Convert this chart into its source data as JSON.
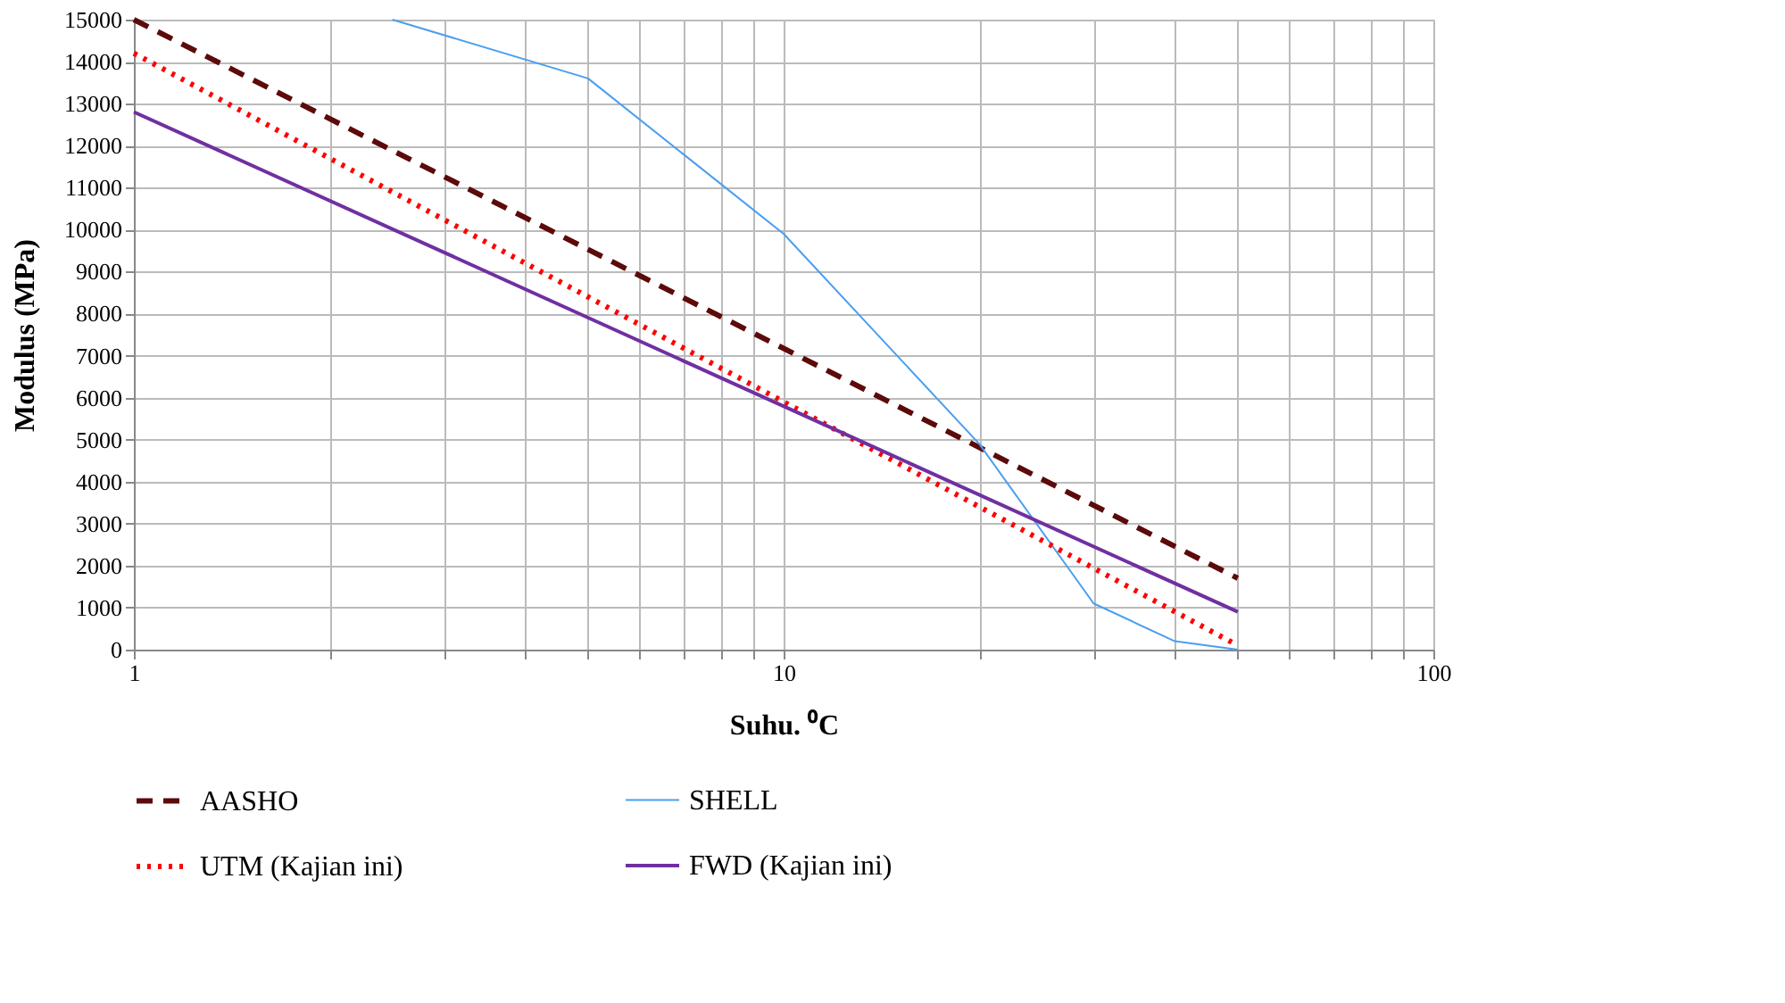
{
  "chart_data": {
    "type": "line",
    "xlabel": "Suhu. ⁰C",
    "ylabel": "Modulus  (MPa)",
    "log": "x",
    "xlim": [
      1,
      100
    ],
    "xticks": [
      1,
      {
        "value": 2,
        "label": null
      },
      {
        "value": 3,
        "label": null
      },
      {
        "value": 4,
        "label": null
      },
      {
        "value": 5,
        "label": null
      },
      {
        "value": 6,
        "label": null
      },
      {
        "value": 7,
        "label": null
      },
      {
        "value": 8,
        "label": null
      },
      {
        "value": 9,
        "label": null
      },
      10,
      {
        "value": 20,
        "label": null
      },
      {
        "value": 30,
        "label": null
      },
      {
        "value": 40,
        "label": null
      },
      {
        "value": 50,
        "label": null
      },
      {
        "value": 60,
        "label": null
      },
      {
        "value": 70,
        "label": null
      },
      {
        "value": 80,
        "label": null
      },
      {
        "value": 90,
        "label": null
      },
      100
    ],
    "ylim": [
      0,
      15000
    ],
    "yticks": [
      0,
      1000,
      2000,
      3000,
      4000,
      5000,
      6000,
      7000,
      8000,
      9000,
      10000,
      11000,
      12000,
      13000,
      14000,
      15000
    ],
    "grid": true,
    "legend": "bottom",
    "marker": "none",
    "series": [
      {
        "name": "AASHO",
        "color": "#5c0a0a",
        "line_style": "dashed",
        "x": [
          1,
          50
        ],
        "values": [
          15000,
          1700
        ]
      },
      {
        "name": "SHELL",
        "color": "#4a9ef0",
        "line_style": "solid",
        "x": [
          2.5,
          5,
          10,
          20,
          30,
          40,
          50
        ],
        "values": [
          15000,
          13600,
          9900,
          4900,
          1100,
          200,
          0
        ]
      },
      {
        "name": "UTM (Kajian ini)",
        "color": "#ff0000",
        "line_style": "dotted",
        "x": [
          1,
          50
        ],
        "values": [
          14200,
          100
        ]
      },
      {
        "name": "FWD (Kajian ini)",
        "color": "#7030a0",
        "line_style": "solid",
        "x": [
          1,
          50
        ],
        "values": [
          12800,
          900
        ]
      }
    ]
  }
}
